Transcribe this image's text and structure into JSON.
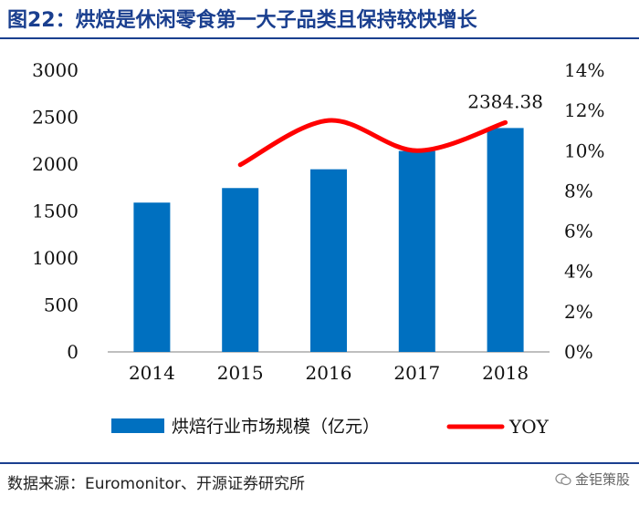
{
  "header": {
    "title": "图22：烘焙是休闲零食第一大子品类且保持较快增长"
  },
  "chart_data": {
    "type": "bar",
    "categories": [
      "2014",
      "2015",
      "2016",
      "2017",
      "2018"
    ],
    "series": [
      {
        "name": "烘焙行业市场规模（亿元）",
        "type": "bar",
        "axis": "left",
        "values": [
          1590,
          1745,
          1945,
          2140,
          2384.38
        ],
        "color": "#0070c0"
      },
      {
        "name": "YOY",
        "type": "line",
        "axis": "right",
        "x": [
          "2015",
          "2016",
          "2017",
          "2018"
        ],
        "values": [
          0.093,
          0.115,
          0.1,
          0.114
        ],
        "color": "#ff0000"
      }
    ],
    "annotations": [
      {
        "category": "2018",
        "text": "2384.38"
      }
    ],
    "y_left": {
      "ylim": [
        0,
        3000
      ],
      "ticks": [
        "0",
        "500",
        "1000",
        "1500",
        "2000",
        "2500",
        "3000"
      ]
    },
    "y_right": {
      "ylim": [
        0,
        0.14
      ],
      "ticks": [
        "0%",
        "2%",
        "4%",
        "6%",
        "8%",
        "10%",
        "12%",
        "14%"
      ]
    },
    "grid": false,
    "legend": "bottom"
  },
  "footer": {
    "source": "数据来源：Euromonitor、开源证券研究所",
    "watermark": "金钜策股"
  }
}
